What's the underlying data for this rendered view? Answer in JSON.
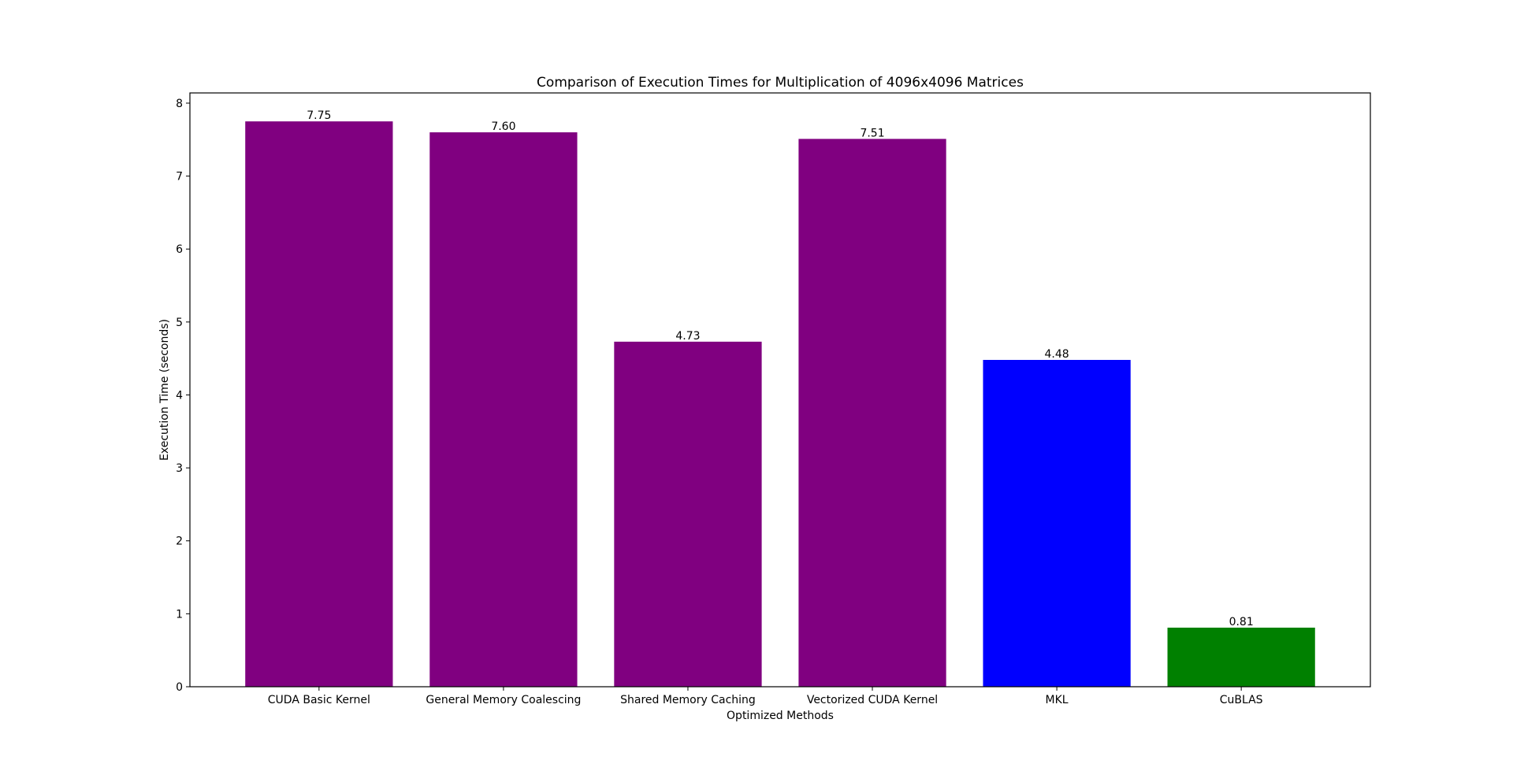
{
  "chart_data": {
    "type": "bar",
    "title": "Comparison of Execution Times for Multiplication of 4096x4096 Matrices",
    "xlabel": "Optimized Methods",
    "ylabel": "Execution Time (seconds)",
    "categories": [
      "CUDA Basic Kernel",
      "General Memory Coalescing",
      "Shared Memory Caching",
      "Vectorized CUDA Kernel",
      "MKL",
      "CuBLAS"
    ],
    "values": [
      7.75,
      7.6,
      4.73,
      7.51,
      4.48,
      0.81
    ],
    "value_labels": [
      "7.75",
      "7.60",
      "4.73",
      "7.51",
      "4.48",
      "0.81"
    ],
    "colors": [
      "#800080",
      "#800080",
      "#800080",
      "#800080",
      "#0000ff",
      "#008000"
    ],
    "ylim": [
      0,
      8.14
    ],
    "yticks": [
      0,
      1,
      2,
      3,
      4,
      5,
      6,
      7,
      8
    ],
    "grid": false,
    "legend": "none"
  }
}
